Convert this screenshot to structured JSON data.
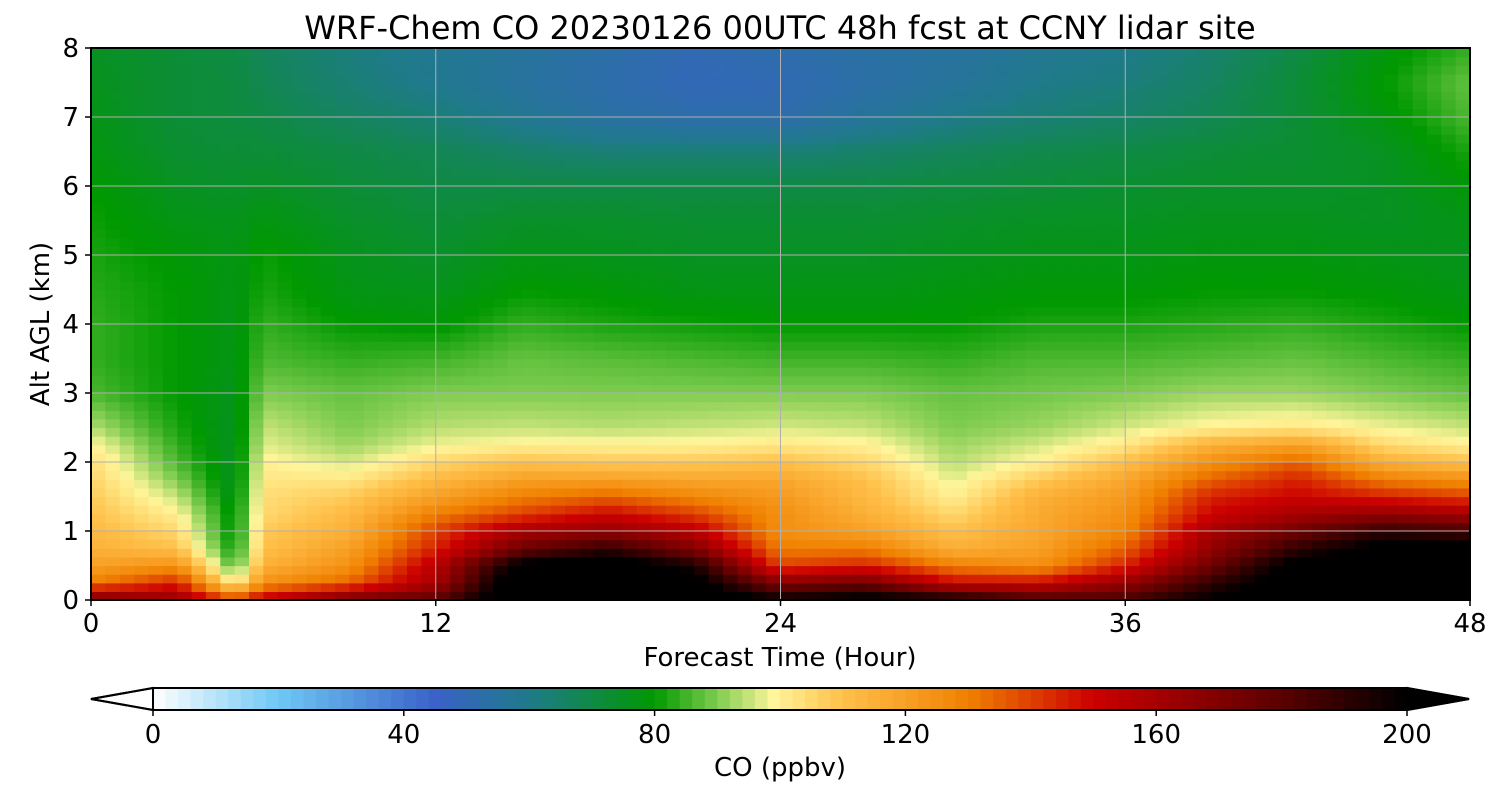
{
  "chart_data": {
    "type": "heatmap",
    "title": "WRF-Chem CO  20230126 00UTC 48h fcst at CCNY lidar site",
    "xlabel": "Forecast Time (Hour)",
    "ylabel": "Alt AGL (km)",
    "xlim": [
      0,
      48
    ],
    "ylim": [
      0,
      8
    ],
    "xticks": [
      0,
      12,
      24,
      36,
      48
    ],
    "yticks": [
      0,
      1,
      2,
      3,
      4,
      5,
      6,
      7,
      8
    ],
    "grid": true,
    "x": [
      0,
      3,
      5,
      6,
      9,
      12,
      15,
      18,
      21,
      24,
      27,
      30,
      33,
      36,
      39,
      42,
      45,
      48
    ],
    "y": [
      0,
      0.25,
      0.5,
      0.75,
      1.0,
      1.25,
      1.5,
      1.75,
      2.0,
      2.25,
      2.5,
      3.0,
      3.5,
      4.0,
      4.5,
      5.0,
      5.5,
      6.0,
      6.5,
      7.0,
      7.5,
      8.0
    ],
    "values": [
      [
        175,
        165,
        140,
        155,
        175,
        180,
        215,
        215,
        210,
        200,
        205,
        200,
        185,
        185,
        200,
        215,
        215,
        215
      ],
      [
        130,
        145,
        100,
        125,
        135,
        160,
        215,
        215,
        205,
        170,
        175,
        150,
        150,
        165,
        190,
        210,
        215,
        215
      ],
      [
        120,
        125,
        85,
        115,
        125,
        155,
        205,
        210,
        195,
        140,
        145,
        130,
        125,
        145,
        175,
        205,
        210,
        210
      ],
      [
        115,
        110,
        80,
        110,
        120,
        145,
        175,
        190,
        170,
        130,
        130,
        115,
        120,
        135,
        165,
        190,
        205,
        205
      ],
      [
        112,
        105,
        78,
        108,
        115,
        140,
        160,
        165,
        155,
        125,
        120,
        110,
        118,
        128,
        160,
        175,
        190,
        185
      ],
      [
        110,
        100,
        78,
        105,
        112,
        130,
        140,
        150,
        140,
        125,
        115,
        105,
        117,
        125,
        150,
        160,
        165,
        160
      ],
      [
        108,
        95,
        76,
        104,
        108,
        120,
        130,
        135,
        128,
        122,
        112,
        100,
        115,
        122,
        145,
        150,
        145,
        140
      ],
      [
        106,
        90,
        75,
        102,
        102,
        112,
        120,
        120,
        118,
        118,
        110,
        97,
        108,
        118,
        135,
        145,
        130,
        125
      ],
      [
        104,
        86,
        75,
        100,
        96,
        105,
        110,
        108,
        108,
        110,
        105,
        94,
        100,
        110,
        125,
        135,
        115,
        110
      ],
      [
        100,
        84,
        75,
        97,
        92,
        98,
        100,
        100,
        100,
        102,
        100,
        92,
        96,
        102,
        115,
        120,
        105,
        100
      ],
      [
        94,
        82,
        75,
        95,
        90,
        94,
        95,
        94,
        95,
        96,
        95,
        90,
        92,
        96,
        100,
        102,
        98,
        95
      ],
      [
        86,
        80,
        76,
        90,
        88,
        90,
        90,
        90,
        90,
        90,
        90,
        88,
        89,
        90,
        92,
        92,
        90,
        88
      ],
      [
        84,
        80,
        77,
        86,
        84,
        85,
        88,
        87,
        86,
        85,
        85,
        84,
        86,
        86,
        87,
        88,
        86,
        84
      ],
      [
        84,
        80,
        77,
        84,
        80,
        79,
        84,
        82,
        81,
        80,
        80,
        80,
        82,
        82,
        83,
        84,
        82,
        80
      ],
      [
        83,
        80,
        77,
        82,
        77,
        76,
        80,
        79,
        77,
        77,
        77,
        78,
        79,
        79,
        80,
        80,
        79,
        77
      ],
      [
        82,
        79,
        77,
        81,
        76,
        74,
        77,
        76,
        75,
        75,
        75,
        76,
        77,
        77,
        78,
        78,
        77,
        76
      ],
      [
        81,
        77,
        76,
        78,
        74,
        72,
        74,
        74,
        73,
        73,
        73,
        74,
        75,
        75,
        76,
        76,
        75,
        77
      ],
      [
        80,
        75,
        74,
        75,
        72,
        70,
        70,
        70,
        70,
        70,
        70,
        71,
        72,
        73,
        74,
        74,
        75,
        79
      ],
      [
        78,
        73,
        72,
        72,
        70,
        68,
        65,
        63,
        63,
        63,
        65,
        67,
        69,
        70,
        72,
        73,
        75,
        82
      ],
      [
        77,
        72,
        71,
        70,
        66,
        63,
        58,
        54,
        52,
        52,
        56,
        60,
        63,
        65,
        68,
        72,
        78,
        86
      ],
      [
        76,
        72,
        71,
        68,
        63,
        59,
        55,
        52,
        49,
        50,
        53,
        56,
        60,
        62,
        66,
        72,
        80,
        88
      ],
      [
        75,
        72,
        70,
        67,
        62,
        58,
        56,
        53,
        50,
        52,
        54,
        55,
        58,
        60,
        64,
        70,
        78,
        84
      ]
    ],
    "colorbar": {
      "label": "CO  (ppbv)",
      "min": 0,
      "max": 200,
      "ticks": [
        0,
        40,
        80,
        120,
        160,
        200
      ],
      "extend": "both",
      "colorscale": [
        [
          0,
          "#ffffff"
        ],
        [
          20,
          "#6ec8f4"
        ],
        [
          45,
          "#3a62c8"
        ],
        [
          60,
          "#1f7a8a"
        ],
        [
          80,
          "#009900"
        ],
        [
          90,
          "#7fcc50"
        ],
        [
          99,
          "#fff59a"
        ],
        [
          110,
          "#ffc04a"
        ],
        [
          130,
          "#f08000"
        ],
        [
          150,
          "#cc0000"
        ],
        [
          180,
          "#5a0000"
        ],
        [
          200,
          "#000000"
        ]
      ]
    }
  }
}
